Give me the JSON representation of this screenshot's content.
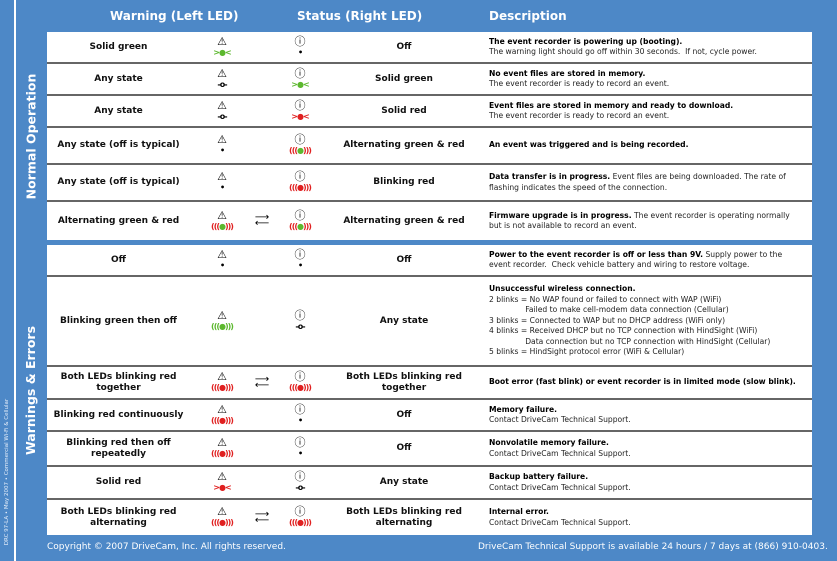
{
  "side_text": "DRC 97-LA  •  May 2007  •  Commercial Wi-Fi & Cellular",
  "headers": {
    "warning": "Warning (Left LED)",
    "status": "Status (Right LED)",
    "description": "Description"
  },
  "sections": [
    {
      "label": "Normal Operation",
      "rows": [
        {
          "left": "Solid green",
          "left_led": "solid-green",
          "right_led": "off",
          "right": "Off",
          "desc_title": "The event recorder is powering up (booting).",
          "desc_lines": [
            "The warning light should go off within 30 seconds.  If not, cycle power."
          ]
        },
        {
          "left": "Any state",
          "left_led": "any",
          "right_led": "solid-green",
          "right": "Solid green",
          "desc_title": "No event files are stored in memory.",
          "desc_lines": [
            "The event recorder is ready to record an event."
          ]
        },
        {
          "left": "Any state",
          "left_led": "any",
          "right_led": "solid-red",
          "right": "Solid red",
          "desc_title": "Event files are stored in memory and ready to download.",
          "desc_lines": [
            "The event recorder is ready to record an event."
          ]
        },
        {
          "left": "Any state (off is typical)",
          "left_led": "off",
          "right_led": "blink-alt",
          "right": "Alternating green & red",
          "desc_title": "An event was triggered and is being recorded.",
          "desc_lines": []
        },
        {
          "left": "Any state (off is typical)",
          "left_led": "off",
          "right_led": "blink-red",
          "right": "Blinking red",
          "desc_title": "Data transfer is in progress.",
          "desc_inline": " Event files are being downloaded.  The rate of",
          "desc_lines": [
            "flashing indicates the speed of the connection."
          ]
        },
        {
          "left": "Alternating green & red",
          "left_led": "blink-alt",
          "right_led": "blink-alt",
          "arrow": true,
          "right": "Alternating green & red",
          "desc_title": "Firmware upgrade is in progress.",
          "desc_inline": "  The event recorder is operating normally",
          "desc_lines": [
            "but is not available to record an event."
          ]
        }
      ]
    },
    {
      "label": "Warnings & Errors",
      "rows": [
        {
          "left": "Off",
          "left_led": "off",
          "right_led": "off",
          "right": "Off",
          "desc_title": "Power to the event recorder is off or less than 9V.",
          "desc_inline": "  Supply power to the",
          "desc_lines": [
            "event recorder.  Check vehicle battery and wiring to restore voltage."
          ]
        },
        {
          "left": "Blinking green then off",
          "left_led": "blink-green",
          "right_led": "any",
          "right": "Any state",
          "desc_title": "Unsuccessful wireless connection.",
          "desc_lines": [
            "2 blinks = No WAP found or failed to connect with WAP (WiFi)",
            "               Failed to make cell-modem data connection (Cellular)",
            "3 blinks = Connected to WAP but no DHCP address (WiFi only)",
            "4 blinks = Received DHCP but no TCP connection with HindSight (WiFi)",
            "               Data connection but no TCP connection with HindSight (Cellular)",
            "5 blinks = HindSight protocol error (WiFi & Cellular)"
          ]
        },
        {
          "left": "Both LEDs blinking red together",
          "left_led": "blink-red",
          "right_led": "blink-red",
          "arrow": true,
          "right": "Both LEDs blinking red together",
          "desc_title": "Boot error (fast blink) or event recorder is in limited mode (slow blink).",
          "desc_lines": []
        },
        {
          "left": "Blinking red continuously",
          "left_led": "blink-red",
          "right_led": "off",
          "right": "Off",
          "desc_title": "Memory failure.",
          "desc_lines": [
            "Contact DriveCam Technical Support."
          ]
        },
        {
          "left": "Blinking red then off repeatedly",
          "left_led": "blink-red",
          "right_led": "off",
          "right": "Off",
          "desc_title": "Nonvolatile memory failure.",
          "desc_lines": [
            "Contact DriveCam Technical Support."
          ]
        },
        {
          "left": "Solid red",
          "left_led": "solid-red",
          "right_led": "any",
          "right": "Any state",
          "desc_title": "Backup battery failure.",
          "desc_lines": [
            "Contact DriveCam Technical Support."
          ]
        },
        {
          "left": "Both LEDs blinking red alternating",
          "left_led": "blink-red",
          "right_led": "blink-red",
          "arrow": true,
          "right": "Both LEDs blinking red alternating",
          "desc_title": "Internal error.",
          "desc_lines": [
            "Contact DriveCam Technical Support."
          ]
        }
      ]
    }
  ],
  "footer": {
    "copyright": "Copyright © 2007 DriveCam, Inc. All rights reserved.",
    "support": "DriveCam Technical Support is available 24 hours / 7 days at (866) 910-0403."
  },
  "colors": {
    "blue": "#4d88c7",
    "green": "#5cb82e",
    "red": "#e02020"
  }
}
